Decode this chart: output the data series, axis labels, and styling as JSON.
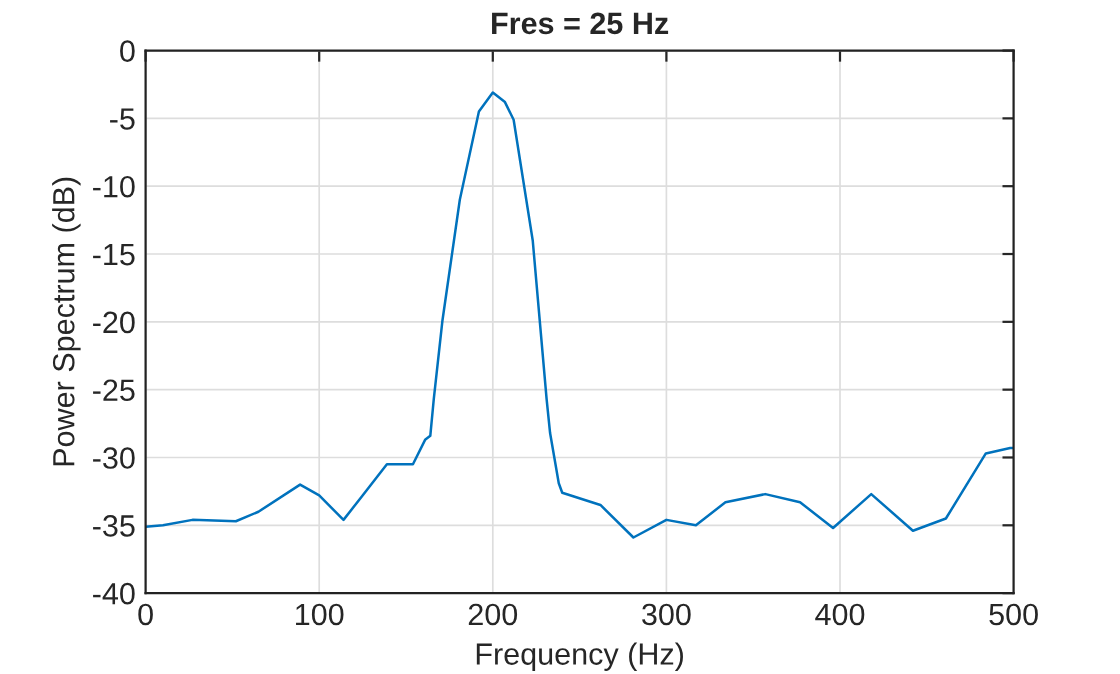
{
  "chart_data": {
    "type": "line",
    "title": "Fres = 25 Hz",
    "xlabel": "Frequency (Hz)",
    "ylabel": "Power Spectrum (dB)",
    "xlim": [
      0,
      500
    ],
    "xticks": [
      0,
      100,
      200,
      300,
      400,
      500
    ],
    "ylim": [
      -40,
      0
    ],
    "yticks": [
      -40,
      -35,
      -30,
      -25,
      -20,
      -15,
      -10,
      -5,
      0
    ],
    "grid": true,
    "marker": "none",
    "line_style": "solid",
    "series": [
      {
        "color": "#0072bd",
        "x": [
          0,
          10,
          27,
          52,
          65,
          89,
          100,
          114,
          125,
          139,
          154,
          161,
          164,
          166,
          171,
          181,
          192,
          200,
          207,
          212,
          223,
          231,
          233,
          238,
          240,
          262,
          281,
          300,
          317,
          334,
          357,
          377,
          396,
          418,
          442,
          461,
          484,
          498,
          500
        ],
        "values": [
          -35.1,
          -35.0,
          -34.6,
          -34.7,
          -34.0,
          -32.0,
          -32.8,
          -34.6,
          -32.8,
          -30.5,
          -30.5,
          -28.7,
          -28.4,
          -25.7,
          -19.9,
          -11.0,
          -4.5,
          -3.1,
          -3.8,
          -5.1,
          -14.0,
          -25.7,
          -28.2,
          -31.9,
          -32.6,
          -33.5,
          -35.9,
          -34.6,
          -35.0,
          -33.3,
          -32.7,
          -33.3,
          -35.2,
          -32.7,
          -35.4,
          -34.5,
          -29.7,
          -29.3,
          -29.3
        ]
      }
    ]
  }
}
